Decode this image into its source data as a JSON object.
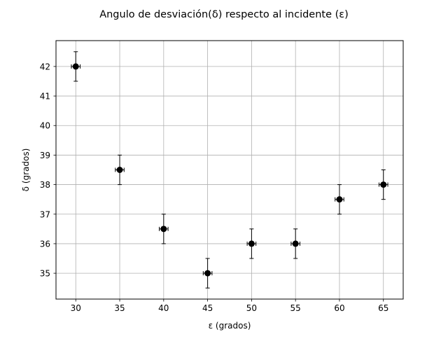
{
  "chart_data": {
    "type": "scatter",
    "title": "Angulo de desviación(δ) respecto al incidente (ε)",
    "xlabel": "ε (grados)",
    "ylabel": "δ (grados)",
    "xlim": [
      27.75,
      67.25
    ],
    "ylim": [
      34.125,
      42.875
    ],
    "xticks": [
      30,
      35,
      40,
      45,
      50,
      55,
      60,
      65
    ],
    "yticks": [
      35,
      36,
      37,
      38,
      39,
      40,
      41,
      42
    ],
    "grid": true,
    "marker_color": "#000000",
    "grid_color": "#b0b0b0",
    "points": [
      {
        "x": 30,
        "y": 42,
        "xerr": 0.5,
        "yerr": 0.5
      },
      {
        "x": 35,
        "y": 38.5,
        "xerr": 0.5,
        "yerr": 0.5
      },
      {
        "x": 40,
        "y": 36.5,
        "xerr": 0.5,
        "yerr": 0.5
      },
      {
        "x": 45,
        "y": 35,
        "xerr": 0.5,
        "yerr": 0.5
      },
      {
        "x": 50,
        "y": 36,
        "xerr": 0.5,
        "yerr": 0.5
      },
      {
        "x": 55,
        "y": 36,
        "xerr": 0.5,
        "yerr": 0.5
      },
      {
        "x": 60,
        "y": 37.5,
        "xerr": 0.5,
        "yerr": 0.5
      },
      {
        "x": 65,
        "y": 38,
        "xerr": 0.5,
        "yerr": 0.5
      }
    ]
  }
}
